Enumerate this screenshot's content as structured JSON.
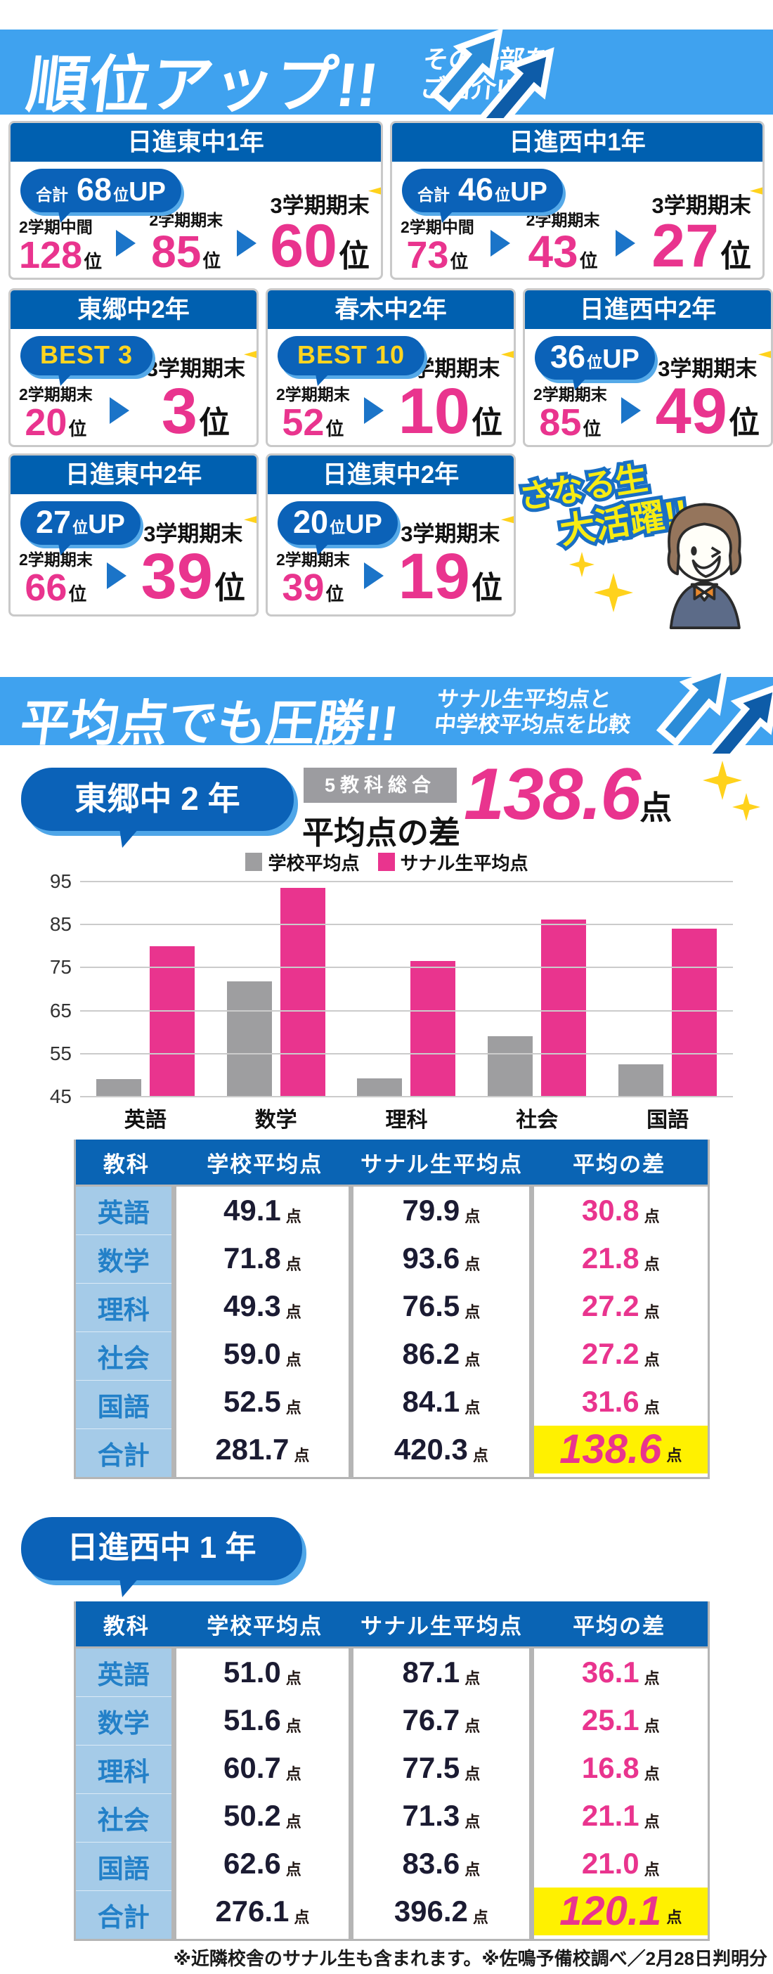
{
  "rank_section": {
    "title": "順位アップ!!",
    "subtitle_lines": [
      "その一部を",
      "ご紹介!!"
    ],
    "cards": [
      {
        "school": "日進東中1年",
        "badge": {
          "prefix": "合計",
          "number": "68",
          "unit": "位",
          "up": "UP"
        },
        "steps": [
          {
            "label": "2学期中間",
            "value": "128",
            "unit": "位"
          },
          {
            "label": "2学期期末",
            "value": "85",
            "unit": "位"
          }
        ],
        "final": {
          "label": "3学期期末",
          "value": "60",
          "unit": "位"
        }
      },
      {
        "school": "日進西中1年",
        "badge": {
          "prefix": "合計",
          "number": "46",
          "unit": "位",
          "up": "UP"
        },
        "steps": [
          {
            "label": "2学期中間",
            "value": "73",
            "unit": "位"
          },
          {
            "label": "2学期期末",
            "value": "43",
            "unit": "位"
          }
        ],
        "final": {
          "label": "3学期期末",
          "value": "27",
          "unit": "位"
        }
      },
      {
        "school": "東郷中2年",
        "badge": {
          "text": "BEST 3"
        },
        "steps": [
          {
            "label": "2学期期末",
            "value": "20",
            "unit": "位"
          }
        ],
        "final": {
          "label": "3学期期末",
          "value": "3",
          "unit": "位"
        }
      },
      {
        "school": "春木中2年",
        "badge": {
          "text": "BEST 10"
        },
        "steps": [
          {
            "label": "2学期期末",
            "value": "52",
            "unit": "位"
          }
        ],
        "final": {
          "label": "3学期期末",
          "value": "10",
          "unit": "位"
        }
      },
      {
        "school": "日進西中2年",
        "badge": {
          "number": "36",
          "unit": "位",
          "up": "UP"
        },
        "steps": [
          {
            "label": "2学期期末",
            "value": "85",
            "unit": "位"
          }
        ],
        "final": {
          "label": "3学期期末",
          "value": "49",
          "unit": "位"
        }
      },
      {
        "school": "日進東中2年",
        "badge": {
          "number": "27",
          "unit": "位",
          "up": "UP"
        },
        "steps": [
          {
            "label": "2学期期末",
            "value": "66",
            "unit": "位"
          }
        ],
        "final": {
          "label": "3学期期末",
          "value": "39",
          "unit": "位"
        }
      },
      {
        "school": "日進東中2年",
        "badge": {
          "number": "20",
          "unit": "位",
          "up": "UP"
        },
        "steps": [
          {
            "label": "2学期期末",
            "value": "39",
            "unit": "位"
          }
        ],
        "final": {
          "label": "3学期期末",
          "value": "19",
          "unit": "位"
        }
      }
    ],
    "mascot_lines": [
      "さなる生",
      "大活躍!!"
    ]
  },
  "average_section": {
    "title": "平均点でも圧勝!!",
    "subtitle_lines": [
      "サナル生平均点と",
      "中学校平均点を比較"
    ]
  },
  "togo_block": {
    "badge": "東郷中 2 年",
    "tag": "5教科総合",
    "diff_label": "平均点の差",
    "diff_value": "138.6",
    "diff_unit": "点"
  },
  "chart_data": {
    "type": "bar",
    "categories": [
      "英語",
      "数学",
      "理科",
      "社会",
      "国語"
    ],
    "series": [
      {
        "name": "学校平均点",
        "color": "#9E9EA0",
        "values": [
          49.1,
          71.8,
          49.3,
          59.0,
          52.5
        ]
      },
      {
        "name": "サナル生平均点",
        "color": "#E9348E",
        "values": [
          79.9,
          93.6,
          76.5,
          86.2,
          84.1
        ]
      }
    ],
    "title": "",
    "xlabel": "",
    "ylabel": "",
    "ylim": [
      45,
      95
    ],
    "yticks": [
      45,
      55,
      65,
      75,
      85,
      95
    ],
    "grid": true,
    "legend_position": "top"
  },
  "togo_table": {
    "headers": [
      "教科",
      "学校平均点",
      "サナル生平均点",
      "平均の差"
    ],
    "unit": "点",
    "rows": [
      {
        "subject": "英語",
        "school": "49.1",
        "sanaru": "79.9",
        "diff": "30.8",
        "is_total": false
      },
      {
        "subject": "数学",
        "school": "71.8",
        "sanaru": "93.6",
        "diff": "21.8",
        "is_total": false
      },
      {
        "subject": "理科",
        "school": "49.3",
        "sanaru": "76.5",
        "diff": "27.2",
        "is_total": false
      },
      {
        "subject": "社会",
        "school": "59.0",
        "sanaru": "86.2",
        "diff": "27.2",
        "is_total": false
      },
      {
        "subject": "国語",
        "school": "52.5",
        "sanaru": "84.1",
        "diff": "31.6",
        "is_total": false
      },
      {
        "subject": "合計",
        "school": "281.7",
        "sanaru": "420.3",
        "diff": "138.6",
        "is_total": true
      }
    ]
  },
  "nisshin_block": {
    "badge": "日進西中 1 年",
    "table": {
      "headers": [
        "教科",
        "学校平均点",
        "サナル生平均点",
        "平均の差"
      ],
      "unit": "点",
      "rows": [
        {
          "subject": "英語",
          "school": "51.0",
          "sanaru": "87.1",
          "diff": "36.1",
          "is_total": false
        },
        {
          "subject": "数学",
          "school": "51.6",
          "sanaru": "76.7",
          "diff": "25.1",
          "is_total": false
        },
        {
          "subject": "理科",
          "school": "60.7",
          "sanaru": "77.5",
          "diff": "16.8",
          "is_total": false
        },
        {
          "subject": "社会",
          "school": "50.2",
          "sanaru": "71.3",
          "diff": "21.1",
          "is_total": false
        },
        {
          "subject": "国語",
          "school": "62.6",
          "sanaru": "83.6",
          "diff": "21.0",
          "is_total": false
        },
        {
          "subject": "合計",
          "school": "276.1",
          "sanaru": "396.2",
          "diff": "120.1",
          "is_total": true
        }
      ]
    }
  },
  "footer_note": "※近隣校舎のサナル生も含まれます。※佐鳴予備校調べ／2月28日判明分",
  "colors": {
    "banner_blue": "#3FA2EF",
    "arrow_back_blue": "#2B8CD8",
    "arrow_front_blue": "#0E5CA8",
    "card_header_blue": "#0060B0",
    "bubble_blue": "#0B62B8",
    "bubble_edge_blue": "#55A9E8",
    "accent_pink": "#E9348E",
    "best_yellow": "#FFD520",
    "sparkle_yellow": "#FFD21C",
    "highlight_yellow": "#FFF100",
    "table_header_blue": "#0A64B4",
    "subject_col_blue": "#A5CBE8",
    "subject_text_blue": "#2380C8",
    "bar_gray": "#9E9EA0",
    "mascot_text_yellow": "#F7EC13",
    "mascot_text_stroke": "#1A6FC4"
  }
}
